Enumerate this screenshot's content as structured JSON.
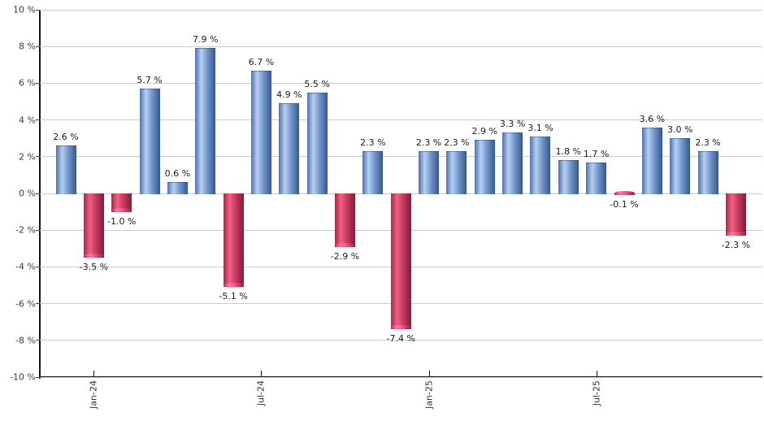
{
  "chart_data": {
    "type": "bar",
    "title": "",
    "xlabel": "",
    "ylabel": "",
    "y_unit": "%",
    "ylim": [
      -10,
      10
    ],
    "y_tick_step": 2,
    "grid": true,
    "legend": "none",
    "y_ticks": [
      "10 %",
      "8 %",
      "6 %",
      "4 %",
      "2 %",
      "0 %",
      "-2 %",
      "-4 %",
      "-6 %",
      "-8 %",
      "-10 %"
    ],
    "values": [
      2.6,
      -3.5,
      -1.0,
      5.7,
      0.6,
      7.9,
      -5.1,
      6.7,
      4.9,
      5.5,
      -2.9,
      2.3,
      -7.4,
      2.3,
      2.3,
      2.9,
      3.3,
      3.1,
      1.8,
      1.7,
      -0.1,
      3.6,
      3.0,
      2.3,
      -2.3
    ],
    "bar_labels": [
      "2.6 %",
      "-3.5 %",
      "-1.0 %",
      "5.7 %",
      "0.6 %",
      "7.9 %",
      "-5.1 %",
      "6.7 %",
      "4.9 %",
      "5.5 %",
      "-2.9 %",
      "2.3 %",
      "-7.4 %",
      "2.3 %",
      "2.3 %",
      "2.9 %",
      "3.3 %",
      "3.1 %",
      "1.8 %",
      "1.7 %",
      "-0.1 %",
      "3.6 %",
      "3.0 %",
      "2.3 %",
      "-2.3 %"
    ],
    "x_tick_labels": [
      {
        "index": 1,
        "label": "Jan-24"
      },
      {
        "index": 7,
        "label": "Jul-24"
      },
      {
        "index": 13,
        "label": "Jan-25"
      },
      {
        "index": 19,
        "label": "Jul-25"
      }
    ],
    "colors": {
      "positive_edge_left": "#4f70ab",
      "positive_highlight": "#b7d0f2",
      "positive_mid": "#7296cc",
      "positive_edge_right": "#37578f",
      "negative_edge_left": "#ad2549",
      "negative_highlight": "#ee6185",
      "negative_mid": "#c73a60",
      "negative_edge_right": "#801d3b",
      "gridline": "#cacaca",
      "axis": "#151515",
      "value_label_text": "#1b1b1b",
      "y_tick_text": "#3d3d3d",
      "x_tick_text": "#30304c",
      "background": "#ffffff"
    }
  }
}
